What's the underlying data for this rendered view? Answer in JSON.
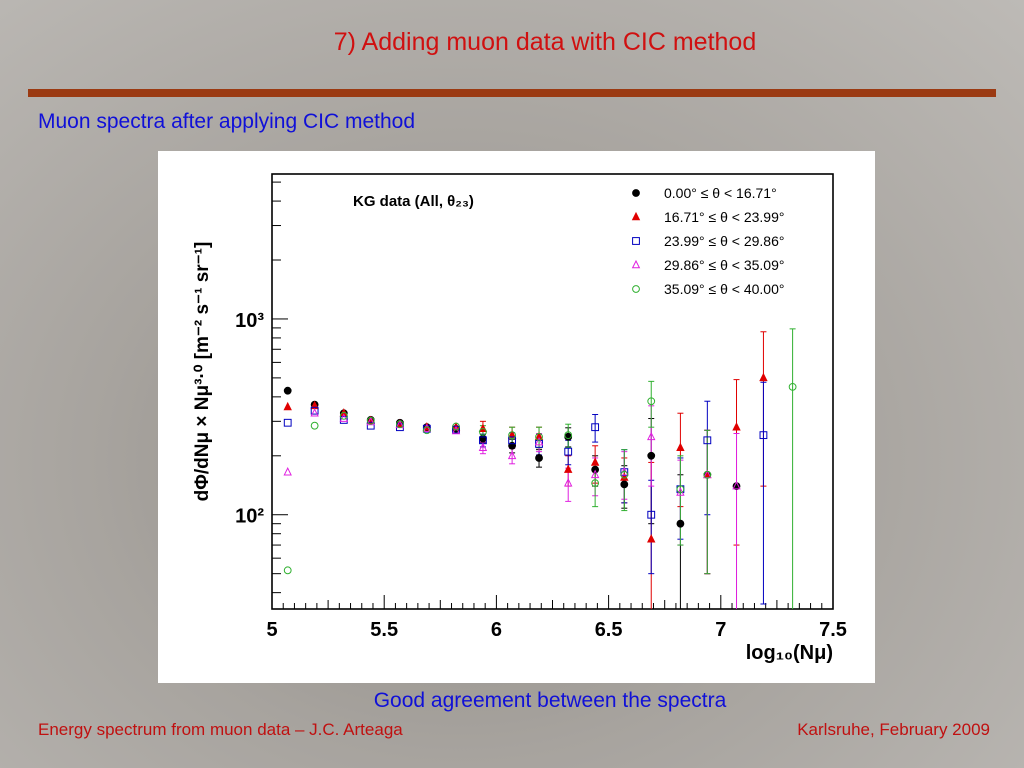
{
  "slide": {
    "title": "7) Adding muon data with CIC method",
    "subtitle": "Muon spectra after applying CIC method",
    "caption": "Good agreement between the spectra",
    "footer_left": "Energy spectrum from muon data – J.C. Arteaga",
    "footer_right": "Karlsruhe,  February 2009"
  },
  "chart_data": {
    "type": "scatter",
    "annotation": "KG data (All, θ₂₃)",
    "xlabel": "log₁₀(Nμ)",
    "ylabel": "dΦ/dNμ × Nμ³·⁰ [m⁻² s⁻¹ sr⁻¹]",
    "xlim": [
      5.0,
      7.5
    ],
    "ylim": [
      33,
      5500
    ],
    "yscale": "log",
    "x_ticks": [
      "5",
      "5.5",
      "6",
      "6.5",
      "7",
      "7.5"
    ],
    "y_ticks": [
      "10²",
      "10³"
    ],
    "legend_position": "top-right",
    "series": [
      {
        "name": "0.00° ≤ θ < 16.71°",
        "marker": "filled-circle",
        "color": "#000000",
        "x": [
          5.07,
          5.19,
          5.32,
          5.44,
          5.57,
          5.69,
          5.82,
          5.94,
          6.07,
          6.19,
          6.32,
          6.44,
          6.57,
          6.69,
          6.82,
          6.94,
          7.07
        ],
        "y": [
          430,
          365,
          330,
          305,
          295,
          280,
          275,
          245,
          225,
          195,
          250,
          170,
          143,
          200,
          90,
          160,
          140
        ],
        "err": [
          0,
          0,
          0,
          0,
          0,
          0,
          0,
          12,
          18,
          20,
          28,
          30,
          35,
          110,
          70,
          110,
          120
        ]
      },
      {
        "name": "16.71° ≤ θ < 23.99°",
        "marker": "filled-triangle",
        "color": "#e00000",
        "x": [
          5.07,
          5.19,
          5.32,
          5.44,
          5.57,
          5.69,
          5.82,
          5.94,
          6.07,
          6.19,
          6.32,
          6.44,
          6.57,
          6.69,
          6.82,
          6.94,
          7.07,
          7.19
        ],
        "y": [
          355,
          360,
          330,
          302,
          290,
          280,
          280,
          275,
          255,
          250,
          170,
          185,
          155,
          75,
          220,
          160,
          280,
          500
        ],
        "err": [
          0,
          0,
          0,
          0,
          0,
          0,
          0,
          25,
          25,
          30,
          30,
          40,
          40,
          110,
          110,
          110,
          210,
          360
        ]
      },
      {
        "name": "23.99° ≤ θ < 29.86°",
        "marker": "open-square",
        "color": "#0000c0",
        "x": [
          5.07,
          5.19,
          5.32,
          5.44,
          5.57,
          5.69,
          5.82,
          5.94,
          6.07,
          6.19,
          6.32,
          6.44,
          6.57,
          6.69,
          6.82,
          6.94,
          7.19
        ],
        "y": [
          295,
          340,
          305,
          285,
          280,
          275,
          272,
          240,
          240,
          230,
          210,
          280,
          165,
          100,
          135,
          240,
          255
        ],
        "err": [
          0,
          0,
          0,
          0,
          0,
          0,
          0,
          18,
          22,
          28,
          30,
          45,
          50,
          50,
          60,
          140,
          220
        ]
      },
      {
        "name": "29.86° ≤ θ < 35.09°",
        "marker": "open-triangle",
        "color": "#e020e0",
        "x": [
          5.07,
          5.19,
          5.32,
          5.44,
          5.57,
          5.69,
          5.82,
          5.94,
          6.07,
          6.19,
          6.32,
          6.44,
          6.57,
          6.69,
          6.82,
          6.94,
          7.07
        ],
        "y": [
          165,
          330,
          310,
          298,
          288,
          275,
          268,
          220,
          200,
          235,
          145,
          160,
          165,
          250,
          130,
          160,
          140
        ],
        "err": [
          0,
          0,
          0,
          0,
          0,
          0,
          0,
          15,
          18,
          25,
          28,
          35,
          45,
          110,
          60,
          110,
          120
        ]
      },
      {
        "name": "35.09° ≤ θ < 40.00°",
        "marker": "open-circle",
        "color": "#30b030",
        "x": [
          5.07,
          5.19,
          5.32,
          5.44,
          5.57,
          5.69,
          5.82,
          5.94,
          6.07,
          6.19,
          6.32,
          6.44,
          6.57,
          6.69,
          6.82,
          6.94,
          7.32
        ],
        "y": [
          52,
          285,
          320,
          302,
          290,
          270,
          282,
          265,
          255,
          250,
          255,
          145,
          160,
          380,
          135,
          160,
          450
        ],
        "err": [
          0,
          0,
          0,
          0,
          0,
          0,
          0,
          20,
          25,
          30,
          35,
          35,
          55,
          100,
          65,
          110,
          440
        ]
      }
    ]
  }
}
